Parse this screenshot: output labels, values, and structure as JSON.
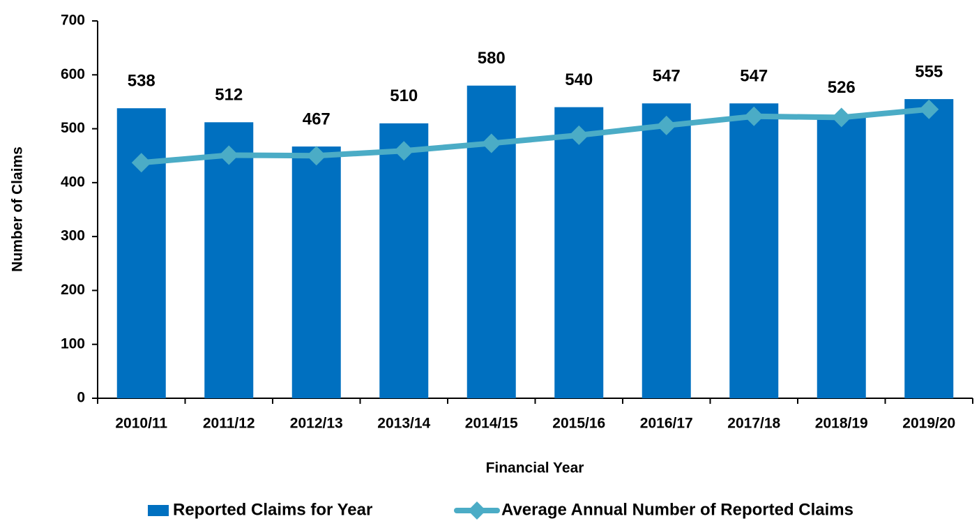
{
  "chart_data": {
    "type": "bar",
    "x_label": "Financial Year",
    "y_label": "Number of Claims",
    "categories": [
      "2010/11",
      "2011/12",
      "2012/13",
      "2013/14",
      "2014/15",
      "2015/16",
      "2016/17",
      "2017/18",
      "2018/19",
      "2019/20"
    ],
    "series": [
      {
        "name": "Reported Claims for Year",
        "color": "#0070c0",
        "type": "bar",
        "values": [
          538,
          512,
          467,
          510,
          580,
          540,
          547,
          547,
          526,
          555
        ]
      },
      {
        "name": "Average Annual Number of Reported Claims",
        "color": "#4bacc6",
        "type": "line",
        "values": [
          437,
          451,
          450,
          459,
          473,
          488,
          506,
          523,
          521,
          536
        ]
      }
    ],
    "ylim": [
      0,
      700
    ],
    "yticks": [
      0,
      100,
      200,
      300,
      400,
      500,
      600,
      700
    ],
    "legend": "bottom"
  }
}
